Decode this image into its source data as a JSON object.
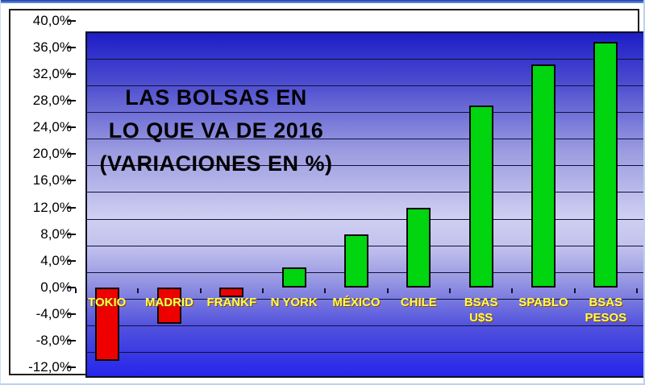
{
  "chart_data": {
    "type": "bar",
    "title_lines": [
      "LAS BOLSAS EN",
      "LO QUE VA DE 2016",
      "(VARIACIONES EN %)"
    ],
    "categories": [
      [
        "TOKIO"
      ],
      [
        "MADRID"
      ],
      [
        "FRANKF"
      ],
      [
        "N YORK"
      ],
      [
        "MÉXICO"
      ],
      [
        "CHILE"
      ],
      [
        "BSAS",
        "U$S"
      ],
      [
        "SPABLO"
      ],
      [
        "BSAS",
        "PESOS"
      ]
    ],
    "values": [
      -11.0,
      -5.5,
      -1.5,
      3.0,
      8.0,
      12.0,
      27.3,
      33.5,
      36.8
    ],
    "xlabel": "",
    "ylabel": "",
    "ylim": [
      -12,
      40
    ],
    "ytick_step": 4,
    "ytick_labels": [
      "40,0%",
      "36,0%",
      "32,0%",
      "28,0%",
      "24,0%",
      "20,0%",
      "16,0%",
      "12,0%",
      "8,0%",
      "4,0%",
      "0,0%",
      "-4,0%",
      "-8,0%",
      "-12,0%"
    ],
    "grid": true,
    "legend_position": "none",
    "colors": {
      "positive_bar": "#00d510",
      "negative_bar": "#ee0000",
      "bar_outline": "#060606",
      "category_label": "#ffff4d",
      "category_label_shadow": "#8b4500",
      "gridline": "#10103a",
      "axis_label": "#000000",
      "title": "#000000",
      "plot_gradient_top": "#1d1dc6",
      "plot_gradient_light": "#cfcff2",
      "plot_gradient_bottom": "#2525ec",
      "frame_border": "#1f1f1f",
      "window_strip": "#1d3fa0"
    }
  }
}
